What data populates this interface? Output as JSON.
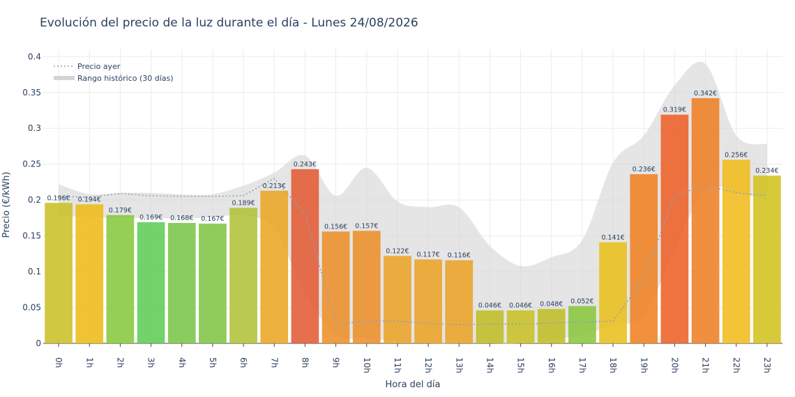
{
  "chart_data": {
    "type": "bar",
    "title": "Evolución del precio de la luz durante el día - Lunes 24/08/2026",
    "xlabel": "Hora del día",
    "ylabel": "Precio (€/kWh)",
    "ylim": [
      0,
      0.41
    ],
    "yticks": [
      "0",
      "0.05",
      "0.1",
      "0.15",
      "0.2",
      "0.25",
      "0.3",
      "0.35",
      "0.4"
    ],
    "grid": true,
    "legend_position": "top-left",
    "categories": [
      "0h",
      "1h",
      "2h",
      "3h",
      "4h",
      "5h",
      "6h",
      "7h",
      "8h",
      "9h",
      "10h",
      "11h",
      "12h",
      "13h",
      "14h",
      "15h",
      "16h",
      "17h",
      "18h",
      "19h",
      "20h",
      "21h",
      "22h",
      "23h"
    ],
    "series": [
      {
        "type": "bar",
        "values": [
          0.196,
          0.194,
          0.179,
          0.169,
          0.168,
          0.167,
          0.189,
          0.213,
          0.243,
          0.156,
          0.157,
          0.122,
          0.117,
          0.116,
          0.046,
          0.046,
          0.048,
          0.052,
          0.141,
          0.236,
          0.319,
          0.342,
          0.256,
          0.234
        ],
        "labels": [
          "0.196€",
          "0.194€",
          "0.179€",
          "0.169€",
          "0.168€",
          "0.167€",
          "0.189€",
          "0.213€",
          "0.243€",
          "0.156€",
          "0.157€",
          "0.122€",
          "0.117€",
          "0.116€",
          "0.046€",
          "0.046€",
          "0.048€",
          "0.052€",
          "0.141€",
          "0.236€",
          "0.319€",
          "0.342€",
          "0.256€",
          "0.234€"
        ],
        "colors": [
          "#c9c025",
          "#edbb17",
          "#86c83f",
          "#60cc55",
          "#7ac648",
          "#7fc545",
          "#b0c23a",
          "#eba624",
          "#e35b35",
          "#ed8f2a",
          "#ed8f2a",
          "#eba328",
          "#eba328",
          "#eba328",
          "#c0bd25",
          "#c9c025",
          "#c0bd25",
          "#8ac63f",
          "#e9bf1b",
          "#ef8222",
          "#ed6128",
          "#ee7f26",
          "#f1bc1c",
          "#d3c220"
        ]
      },
      {
        "type": "line",
        "name": "Precio ayer",
        "style": "dotted",
        "color": "#8da2b8",
        "values": [
          0.205,
          0.204,
          0.209,
          0.206,
          0.205,
          0.205,
          0.206,
          0.23,
          0.18,
          0.027,
          0.031,
          0.031,
          0.028,
          0.026,
          0.027,
          0.027,
          0.028,
          0.03,
          0.031,
          0.09,
          0.207,
          0.22,
          0.21,
          0.206
        ]
      },
      {
        "type": "area",
        "name": "Rango histórico (30 días)",
        "color": "#d4d4d4",
        "upper": [
          0.222,
          0.208,
          0.21,
          0.21,
          0.208,
          0.208,
          0.22,
          0.238,
          0.262,
          0.206,
          0.245,
          0.198,
          0.19,
          0.19,
          0.136,
          0.108,
          0.12,
          0.144,
          0.252,
          0.29,
          0.36,
          0.39,
          0.29,
          0.278
        ],
        "lower": [
          0.178,
          0.176,
          0.175,
          0.175,
          0.174,
          0.176,
          0.178,
          0.16,
          0.07,
          0.012,
          0.008,
          0.003,
          0.0,
          0.0,
          0.0,
          0.0,
          0.005,
          0.012,
          0.025,
          0.04,
          0.13,
          0.215,
          0.21,
          0.2
        ]
      }
    ]
  }
}
